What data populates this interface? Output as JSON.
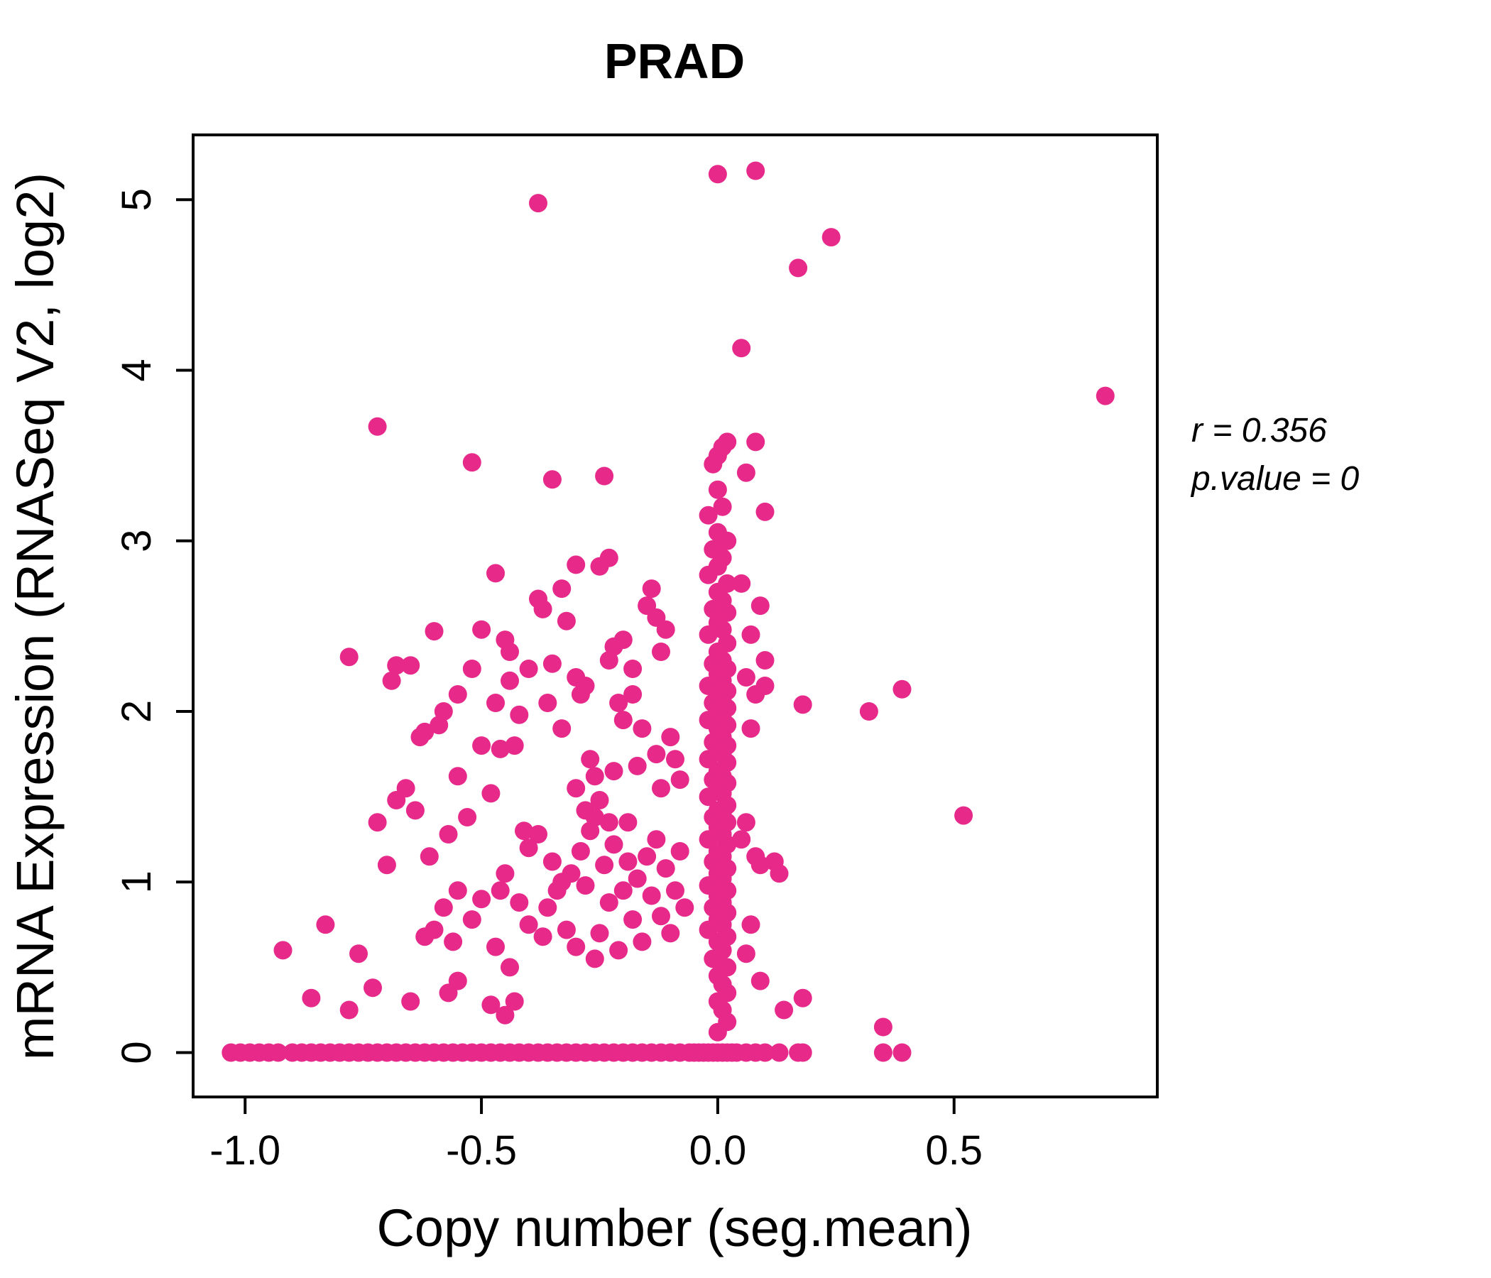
{
  "chart_data": {
    "type": "scatter",
    "title": "PRAD",
    "xlabel": "Copy number (seg.mean)",
    "ylabel": "mRNA Expression (RNASeq V2, log2)",
    "xlim": [
      -1.11,
      0.93
    ],
    "ylim": [
      -0.26,
      5.38
    ],
    "x_ticks": [
      -1.0,
      -0.5,
      0.0,
      0.5
    ],
    "x_tick_labels": [
      "-1.0",
      "-0.5",
      "0.0",
      "0.5"
    ],
    "y_ticks": [
      0,
      1,
      2,
      3,
      4,
      5
    ],
    "y_tick_labels": [
      "0",
      "1",
      "2",
      "3",
      "4",
      "5"
    ],
    "point_color": "#E7298A",
    "title_color": "#E7298A",
    "annotation": {
      "line1": "r = 0.356",
      "line2": "p.value = 0"
    },
    "legend": "none",
    "grid": false,
    "points": [
      [
        -1.03,
        0
      ],
      [
        -1.01,
        0
      ],
      [
        -0.99,
        0
      ],
      [
        -0.97,
        0
      ],
      [
        -0.95,
        0
      ],
      [
        -0.93,
        0
      ],
      [
        -0.9,
        0
      ],
      [
        -0.88,
        0
      ],
      [
        -0.86,
        0
      ],
      [
        -0.84,
        0
      ],
      [
        -0.82,
        0
      ],
      [
        -0.8,
        0
      ],
      [
        -0.78,
        0
      ],
      [
        -0.76,
        0
      ],
      [
        -0.74,
        0
      ],
      [
        -0.72,
        0
      ],
      [
        -0.7,
        0
      ],
      [
        -0.68,
        0
      ],
      [
        -0.66,
        0
      ],
      [
        -0.64,
        0
      ],
      [
        -0.62,
        0
      ],
      [
        -0.6,
        0
      ],
      [
        -0.58,
        0
      ],
      [
        -0.56,
        0
      ],
      [
        -0.54,
        0
      ],
      [
        -0.52,
        0
      ],
      [
        -0.5,
        0
      ],
      [
        -0.48,
        0
      ],
      [
        -0.46,
        0
      ],
      [
        -0.44,
        0
      ],
      [
        -0.42,
        0
      ],
      [
        -0.4,
        0
      ],
      [
        -0.38,
        0
      ],
      [
        -0.36,
        0
      ],
      [
        -0.34,
        0
      ],
      [
        -0.32,
        0
      ],
      [
        -0.3,
        0
      ],
      [
        -0.28,
        0
      ],
      [
        -0.26,
        0
      ],
      [
        -0.24,
        0
      ],
      [
        -0.22,
        0
      ],
      [
        -0.2,
        0
      ],
      [
        -0.18,
        0
      ],
      [
        -0.16,
        0
      ],
      [
        -0.14,
        0
      ],
      [
        -0.12,
        0
      ],
      [
        -0.1,
        0
      ],
      [
        -0.08,
        0
      ],
      [
        -0.06,
        0
      ],
      [
        -0.05,
        0
      ],
      [
        -0.04,
        0
      ],
      [
        -0.03,
        0
      ],
      [
        -0.02,
        0
      ],
      [
        -0.01,
        0
      ],
      [
        0,
        0
      ],
      [
        0.01,
        0
      ],
      [
        0.02,
        0
      ],
      [
        0.03,
        0
      ],
      [
        0.04,
        0
      ],
      [
        0.06,
        0
      ],
      [
        0.08,
        0
      ],
      [
        0.1,
        0
      ],
      [
        0.13,
        0
      ],
      [
        0.17,
        0
      ],
      [
        0.18,
        0
      ],
      [
        0.35,
        0
      ],
      [
        0.39,
        0
      ],
      [
        0,
        5.15
      ],
      [
        0.08,
        5.17
      ],
      [
        -0.38,
        4.98
      ],
      [
        0.24,
        4.78
      ],
      [
        0.17,
        4.6
      ],
      [
        0.05,
        4.13
      ],
      [
        0.82,
        3.85
      ],
      [
        -0.72,
        3.67
      ],
      [
        -0.52,
        3.46
      ],
      [
        -0.35,
        3.36
      ],
      [
        -0.24,
        3.38
      ],
      [
        0,
        3.5
      ],
      [
        0.01,
        3.55
      ],
      [
        -0.01,
        3.45
      ],
      [
        0.02,
        3.58
      ],
      [
        0,
        3.3
      ],
      [
        0.01,
        3.2
      ],
      [
        -0.02,
        3.15
      ],
      [
        0,
        3.05
      ],
      [
        0.02,
        3
      ],
      [
        -0.01,
        2.95
      ],
      [
        0.01,
        2.9
      ],
      [
        0,
        2.85
      ],
      [
        -0.02,
        2.8
      ],
      [
        0.02,
        2.75
      ],
      [
        0,
        2.7
      ],
      [
        0.01,
        2.65
      ],
      [
        -0.01,
        2.6
      ],
      [
        0.02,
        2.58
      ],
      [
        0,
        2.52
      ],
      [
        0.01,
        2.48
      ],
      [
        -0.02,
        2.45
      ],
      [
        0.02,
        2.4
      ],
      [
        0,
        2.35
      ],
      [
        0.01,
        2.3
      ],
      [
        -0.01,
        2.28
      ],
      [
        0.02,
        2.25
      ],
      [
        0,
        2.22
      ],
      [
        0.01,
        2.18
      ],
      [
        -0.02,
        2.15
      ],
      [
        0.02,
        2.12
      ],
      [
        0,
        2.1
      ],
      [
        0.01,
        2.08
      ],
      [
        -0.01,
        2.05
      ],
      [
        0.02,
        2.02
      ],
      [
        0,
        2
      ],
      [
        0.01,
        1.98
      ],
      [
        -0.02,
        1.95
      ],
      [
        0.02,
        1.92
      ],
      [
        0,
        1.9
      ],
      [
        0.01,
        1.85
      ],
      [
        -0.01,
        1.82
      ],
      [
        0.02,
        1.8
      ],
      [
        0,
        1.78
      ],
      [
        0.01,
        1.75
      ],
      [
        -0.02,
        1.72
      ],
      [
        0.02,
        1.7
      ],
      [
        0,
        1.65
      ],
      [
        0.01,
        1.62
      ],
      [
        -0.01,
        1.6
      ],
      [
        0.02,
        1.58
      ],
      [
        0,
        1.55
      ],
      [
        0.01,
        1.52
      ],
      [
        -0.02,
        1.5
      ],
      [
        0.02,
        1.45
      ],
      [
        0,
        1.42
      ],
      [
        0.01,
        1.4
      ],
      [
        -0.01,
        1.38
      ],
      [
        0.02,
        1.35
      ],
      [
        0,
        1.32
      ],
      [
        0.01,
        1.28
      ],
      [
        -0.02,
        1.25
      ],
      [
        0.02,
        1.22
      ],
      [
        0,
        1.18
      ],
      [
        0.01,
        1.15
      ],
      [
        -0.01,
        1.12
      ],
      [
        0.02,
        1.08
      ],
      [
        0,
        1.05
      ],
      [
        0.01,
        1.02
      ],
      [
        -0.02,
        0.98
      ],
      [
        0.02,
        0.95
      ],
      [
        0,
        0.92
      ],
      [
        0.01,
        0.88
      ],
      [
        -0.01,
        0.85
      ],
      [
        0.02,
        0.82
      ],
      [
        0,
        0.78
      ],
      [
        0.01,
        0.75
      ],
      [
        -0.02,
        0.72
      ],
      [
        0.02,
        0.68
      ],
      [
        0,
        0.65
      ],
      [
        0.01,
        0.6
      ],
      [
        -0.01,
        0.55
      ],
      [
        0.02,
        0.5
      ],
      [
        0,
        0.45
      ],
      [
        0.01,
        0.4
      ],
      [
        0.02,
        0.35
      ],
      [
        0,
        0.3
      ],
      [
        0.01,
        0.25
      ],
      [
        0.02,
        0.18
      ],
      [
        0,
        0.12
      ],
      [
        0.06,
        3.4
      ],
      [
        0.08,
        3.58
      ],
      [
        0.1,
        3.17
      ],
      [
        0.05,
        2.75
      ],
      [
        0.09,
        2.62
      ],
      [
        0.07,
        2.45
      ],
      [
        0.1,
        2.3
      ],
      [
        0.06,
        2.2
      ],
      [
        0.08,
        2.1
      ],
      [
        0.07,
        1.9
      ],
      [
        0.06,
        1.35
      ],
      [
        0.08,
        1.15
      ],
      [
        0.09,
        1.1
      ],
      [
        0.12,
        1.12
      ],
      [
        0.13,
        1.05
      ],
      [
        0.07,
        0.75
      ],
      [
        0.06,
        0.58
      ],
      [
        0.09,
        0.42
      ],
      [
        0.14,
        0.25
      ],
      [
        0.18,
        0.32
      ],
      [
        0.1,
        2.15
      ],
      [
        0.05,
        1.25
      ],
      [
        0.18,
        2.04
      ],
      [
        0.32,
        2
      ],
      [
        0.39,
        2.13
      ],
      [
        0.52,
        1.39
      ],
      [
        0.35,
        0.15
      ],
      [
        -0.92,
        0.6
      ],
      [
        -0.86,
        0.32
      ],
      [
        -0.83,
        0.75
      ],
      [
        -0.78,
        0.25
      ],
      [
        -0.76,
        0.58
      ],
      [
        -0.73,
        0.38
      ],
      [
        -0.7,
        1.1
      ],
      [
        -0.78,
        2.32
      ],
      [
        -0.69,
        2.18
      ],
      [
        -0.65,
        2.27
      ],
      [
        -0.63,
        1.85
      ],
      [
        -0.62,
        1.88
      ],
      [
        -0.6,
        2.47
      ],
      [
        -0.59,
        1.92
      ],
      [
        -0.58,
        2
      ],
      [
        -0.55,
        1.62
      ],
      [
        -0.72,
        1.35
      ],
      [
        -0.68,
        1.48
      ],
      [
        -0.66,
        1.55
      ],
      [
        -0.64,
        1.42
      ],
      [
        -0.61,
        1.15
      ],
      [
        -0.57,
        1.28
      ],
      [
        -0.55,
        0.95
      ],
      [
        -0.53,
        1.38
      ],
      [
        -0.5,
        2.48
      ],
      [
        -0.47,
        2.81
      ],
      [
        -0.47,
        2.05
      ],
      [
        -0.45,
        2.42
      ],
      [
        -0.44,
        2.35
      ],
      [
        -0.44,
        2.18
      ],
      [
        -0.42,
        1.98
      ],
      [
        -0.46,
        1.78
      ],
      [
        -0.43,
        1.8
      ],
      [
        -0.48,
        1.52
      ],
      [
        -0.41,
        1.3
      ],
      [
        -0.4,
        2.25
      ],
      [
        -0.38,
        2.66
      ],
      [
        -0.37,
        2.6
      ],
      [
        -0.33,
        2.72
      ],
      [
        -0.32,
        2.53
      ],
      [
        -0.35,
        2.28
      ],
      [
        -0.36,
        2.05
      ],
      [
        -0.52,
        2.25
      ],
      [
        -0.3,
        2.86
      ],
      [
        -0.3,
        2.2
      ],
      [
        -0.29,
        2.1
      ],
      [
        -0.28,
        2.15
      ],
      [
        -0.27,
        1.72
      ],
      [
        -0.26,
        1.62
      ],
      [
        -0.25,
        2.85
      ],
      [
        -0.23,
        2.3
      ],
      [
        -0.22,
        2.38
      ],
      [
        -0.21,
        2.05
      ],
      [
        -0.2,
        1.95
      ],
      [
        -0.2,
        2.42
      ],
      [
        -0.18,
        2.25
      ],
      [
        -0.18,
        2.1
      ],
      [
        -0.17,
        1.68
      ],
      [
        -0.16,
        1.9
      ],
      [
        -0.15,
        2.62
      ],
      [
        -0.14,
        2.72
      ],
      [
        -0.13,
        2.55
      ],
      [
        -0.13,
        1.75
      ],
      [
        -0.12,
        2.35
      ],
      [
        -0.12,
        1.55
      ],
      [
        -0.11,
        2.48
      ],
      [
        -0.1,
        1.85
      ],
      [
        -0.09,
        1.72
      ],
      [
        -0.08,
        1.6
      ],
      [
        -0.33,
        1.9
      ],
      [
        -0.3,
        1.55
      ],
      [
        -0.28,
        1.42
      ],
      [
        -0.25,
        1.48
      ],
      [
        -0.22,
        1.65
      ],
      [
        -0.23,
        1.35
      ],
      [
        -0.26,
        1.38
      ],
      [
        -0.19,
        1.12
      ],
      [
        -0.23,
        2.9
      ],
      [
        -0.62,
        0.68
      ],
      [
        -0.6,
        0.72
      ],
      [
        -0.58,
        0.85
      ],
      [
        -0.56,
        0.65
      ],
      [
        -0.55,
        0.42
      ],
      [
        -0.52,
        0.78
      ],
      [
        -0.5,
        0.9
      ],
      [
        -0.48,
        0.28
      ],
      [
        -0.47,
        0.62
      ],
      [
        -0.46,
        0.95
      ],
      [
        -0.45,
        1.05
      ],
      [
        -0.44,
        0.5
      ],
      [
        -0.43,
        0.3
      ],
      [
        -0.42,
        0.88
      ],
      [
        -0.4,
        1.2
      ],
      [
        -0.4,
        0.75
      ],
      [
        -0.38,
        1.28
      ],
      [
        -0.37,
        0.68
      ],
      [
        -0.36,
        0.85
      ],
      [
        -0.35,
        1.12
      ],
      [
        -0.34,
        0.95
      ],
      [
        -0.33,
        1
      ],
      [
        -0.32,
        0.72
      ],
      [
        -0.31,
        1.05
      ],
      [
        -0.3,
        0.62
      ],
      [
        -0.29,
        1.18
      ],
      [
        -0.28,
        0.98
      ],
      [
        -0.27,
        1.3
      ],
      [
        -0.26,
        0.55
      ],
      [
        -0.25,
        0.7
      ],
      [
        -0.24,
        1.1
      ],
      [
        -0.23,
        0.88
      ],
      [
        -0.22,
        1.22
      ],
      [
        -0.21,
        0.6
      ],
      [
        -0.2,
        0.95
      ],
      [
        -0.19,
        1.35
      ],
      [
        -0.18,
        0.78
      ],
      [
        -0.17,
        1.02
      ],
      [
        -0.16,
        0.65
      ],
      [
        -0.15,
        1.15
      ],
      [
        -0.14,
        0.92
      ],
      [
        -0.13,
        1.25
      ],
      [
        -0.12,
        0.8
      ],
      [
        -0.11,
        1.08
      ],
      [
        -0.1,
        0.7
      ],
      [
        -0.09,
        0.95
      ],
      [
        -0.08,
        1.18
      ],
      [
        -0.07,
        0.85
      ],
      [
        -0.55,
        2.1
      ],
      [
        -0.5,
        1.8
      ],
      [
        -0.45,
        0.22
      ],
      [
        -0.57,
        0.35
      ],
      [
        -0.65,
        0.3
      ],
      [
        -0.68,
        2.27
      ]
    ]
  }
}
